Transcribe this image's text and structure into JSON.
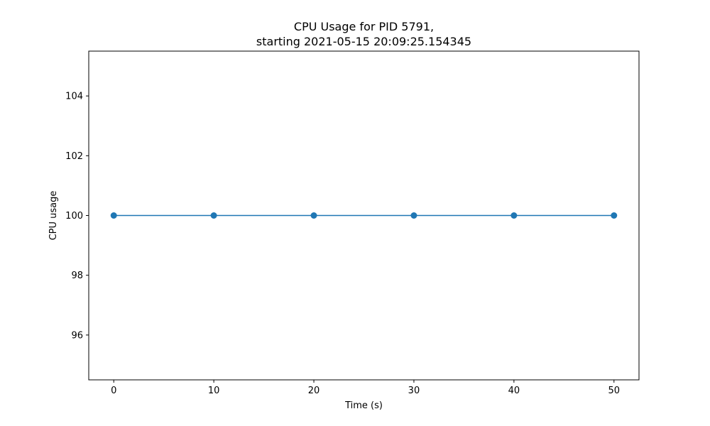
{
  "chart_data": {
    "type": "line",
    "title": "CPU Usage for PID 5791,",
    "subtitle": "starting 2021-05-15 20:09:25.154345",
    "xlabel": "Time (s)",
    "ylabel": "CPU usage",
    "x": [
      0,
      10,
      20,
      30,
      40,
      50
    ],
    "series": [
      {
        "values": [
          100,
          100,
          100,
          100,
          100,
          100
        ],
        "color": "#1f77b4",
        "marker": "circle"
      }
    ],
    "xlim": [
      -2.5,
      52.5
    ],
    "ylim": [
      94.5,
      105.5
    ],
    "xticks": [
      0,
      10,
      20,
      30,
      40,
      50
    ],
    "xtick_labels": [
      "0",
      "10",
      "20",
      "30",
      "40",
      "50"
    ],
    "yticks": [
      96,
      98,
      100,
      102,
      104
    ],
    "ytick_labels": [
      "96",
      "98",
      "100",
      "102",
      "104"
    ],
    "grid": false,
    "legend": "none"
  }
}
